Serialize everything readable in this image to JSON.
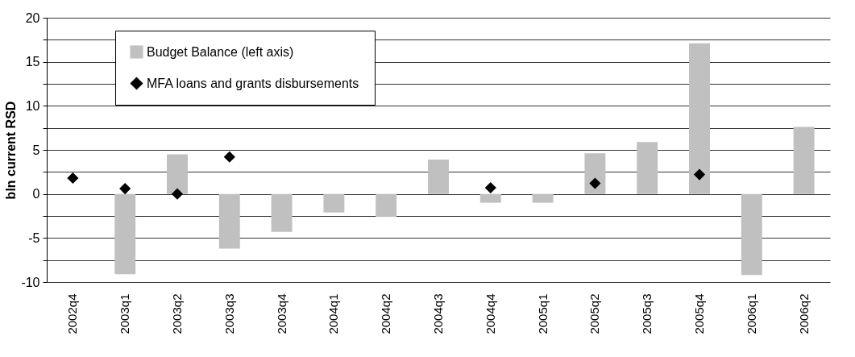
{
  "chart_data": {
    "type": "bar",
    "ylabel": "bln current RSD",
    "categories": [
      "2002q4",
      "2003q1",
      "2003q2",
      "2003q3",
      "2003q4",
      "2004q1",
      "2004q2",
      "2004q3",
      "2004q4",
      "2005q1",
      "2005q2",
      "2005q3",
      "2005q4",
      "2006q1",
      "2006q2"
    ],
    "series": [
      {
        "name": "Budget Balance (left axis)",
        "color": "#c0c0c0",
        "values": [
          null,
          -9.1,
          4.5,
          -6.2,
          -4.3,
          -2.1,
          -2.6,
          3.9,
          -1.0,
          -1.0,
          4.6,
          5.9,
          17.1,
          -9.2,
          7.6
        ]
      },
      {
        "name": "MFA loans and grants disbursements",
        "type": "scatter",
        "marker": "diamond",
        "color": "#000000",
        "values": [
          1.8,
          0.6,
          0.0,
          4.2,
          null,
          null,
          null,
          null,
          0.7,
          null,
          1.2,
          null,
          2.2,
          null,
          null
        ]
      }
    ],
    "ylim": [
      -10,
      20
    ],
    "yticks": [
      -10,
      {
        "value": -7.5,
        "label": null
      },
      -5,
      {
        "value": -2.5,
        "label": null
      },
      0,
      {
        "value": 2.5,
        "label": null
      },
      5,
      {
        "value": 7.5,
        "label": null
      },
      10,
      {
        "value": 12.5,
        "label": null
      },
      15,
      {
        "value": 17.5,
        "label": null
      },
      20
    ],
    "grid": "y",
    "legend": "top left"
  }
}
